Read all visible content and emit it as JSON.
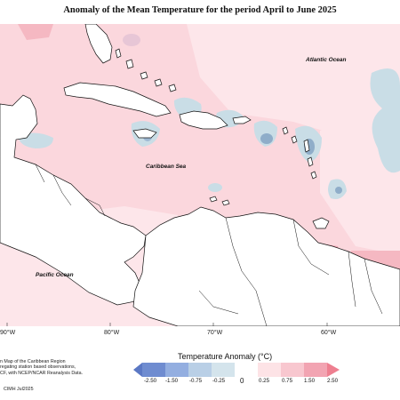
{
  "title": "Anomaly of the Mean Temperature for the period April to June 2025",
  "labels": {
    "atlantic": "Atlantic Ocean",
    "caribbean": "Caribbean Sea",
    "pacific": "Pacific Ocean"
  },
  "longitude_ticks": [
    "90°W",
    "80°W",
    "70°W",
    "60°W"
  ],
  "footnote": {
    "line1": "n Map of the Caribbean Region",
    "line2": "regating station based observations,",
    "line3": "CF, with NCEP/NCAR Reanalysis Data.",
    "credit": "CIMH Jul2025"
  },
  "colorbar": {
    "title": "Temperature Anomaly (°C)",
    "labels": [
      "-2.50",
      "-1.50",
      "-0.75",
      "-0.25",
      "0",
      "0.25",
      "0.75",
      "1.50",
      "2.50"
    ],
    "colors": [
      "#6f8cd0",
      "#93aee0",
      "#b9cfe6",
      "#d4e4ec",
      "#ffffff",
      "#fde3e6",
      "#f8c7cf",
      "#f2a4b2",
      "#ee7f90"
    ]
  },
  "colors": {
    "positive_anomaly": "#fbd9de",
    "negative_anomaly": "#c9dde6",
    "land": "#ffffff",
    "coast": "#111111"
  }
}
